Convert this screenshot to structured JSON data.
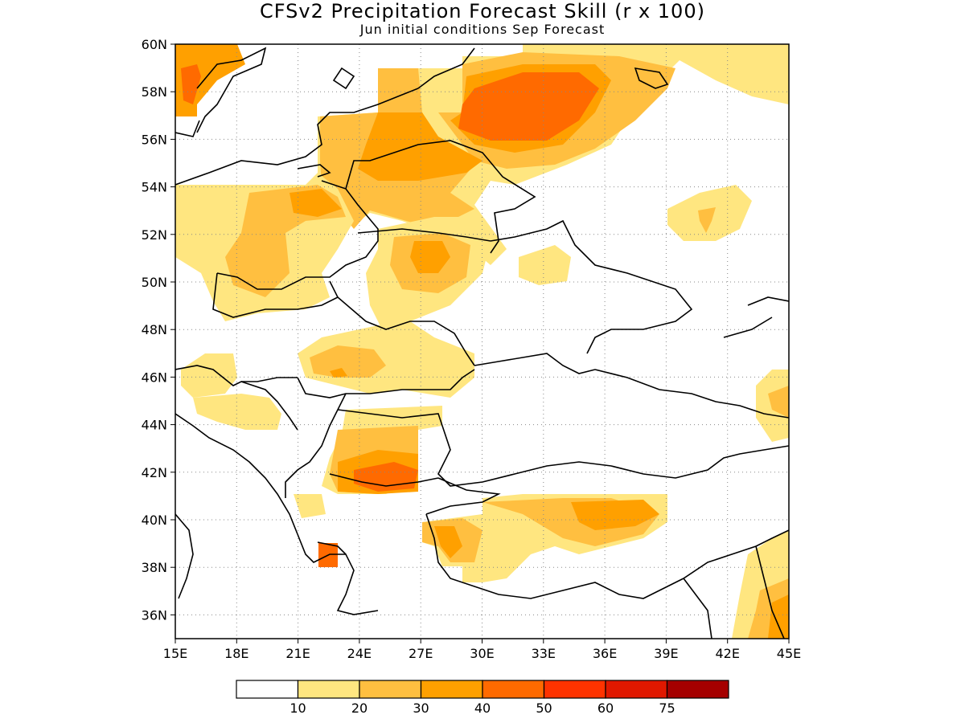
{
  "title": "CFSv2 Precipitation Forecast Skill (r x 100)",
  "subtitle": "Jun initial conditions  Sep Forecast",
  "map": {
    "lon_range": [
      15,
      45
    ],
    "lat_range": [
      35,
      60
    ],
    "lon_ticks": [
      "15E",
      "18E",
      "21E",
      "24E",
      "27E",
      "30E",
      "33E",
      "36E",
      "39E",
      "42E",
      "45E"
    ],
    "lat_ticks": [
      "36N",
      "38N",
      "40N",
      "42N",
      "44N",
      "46N",
      "48N",
      "50N",
      "52N",
      "54N",
      "56N",
      "58N",
      "60N"
    ],
    "gridlines": "dotted"
  },
  "legend": {
    "colors": [
      "#ffffff",
      "#ffe680",
      "#ffbf40",
      "#ffa000",
      "#ff6a00",
      "#ff3300",
      "#e01800",
      "#a50000"
    ],
    "labels": [
      "10",
      "20",
      "30",
      "40",
      "50",
      "60",
      "75"
    ]
  }
}
